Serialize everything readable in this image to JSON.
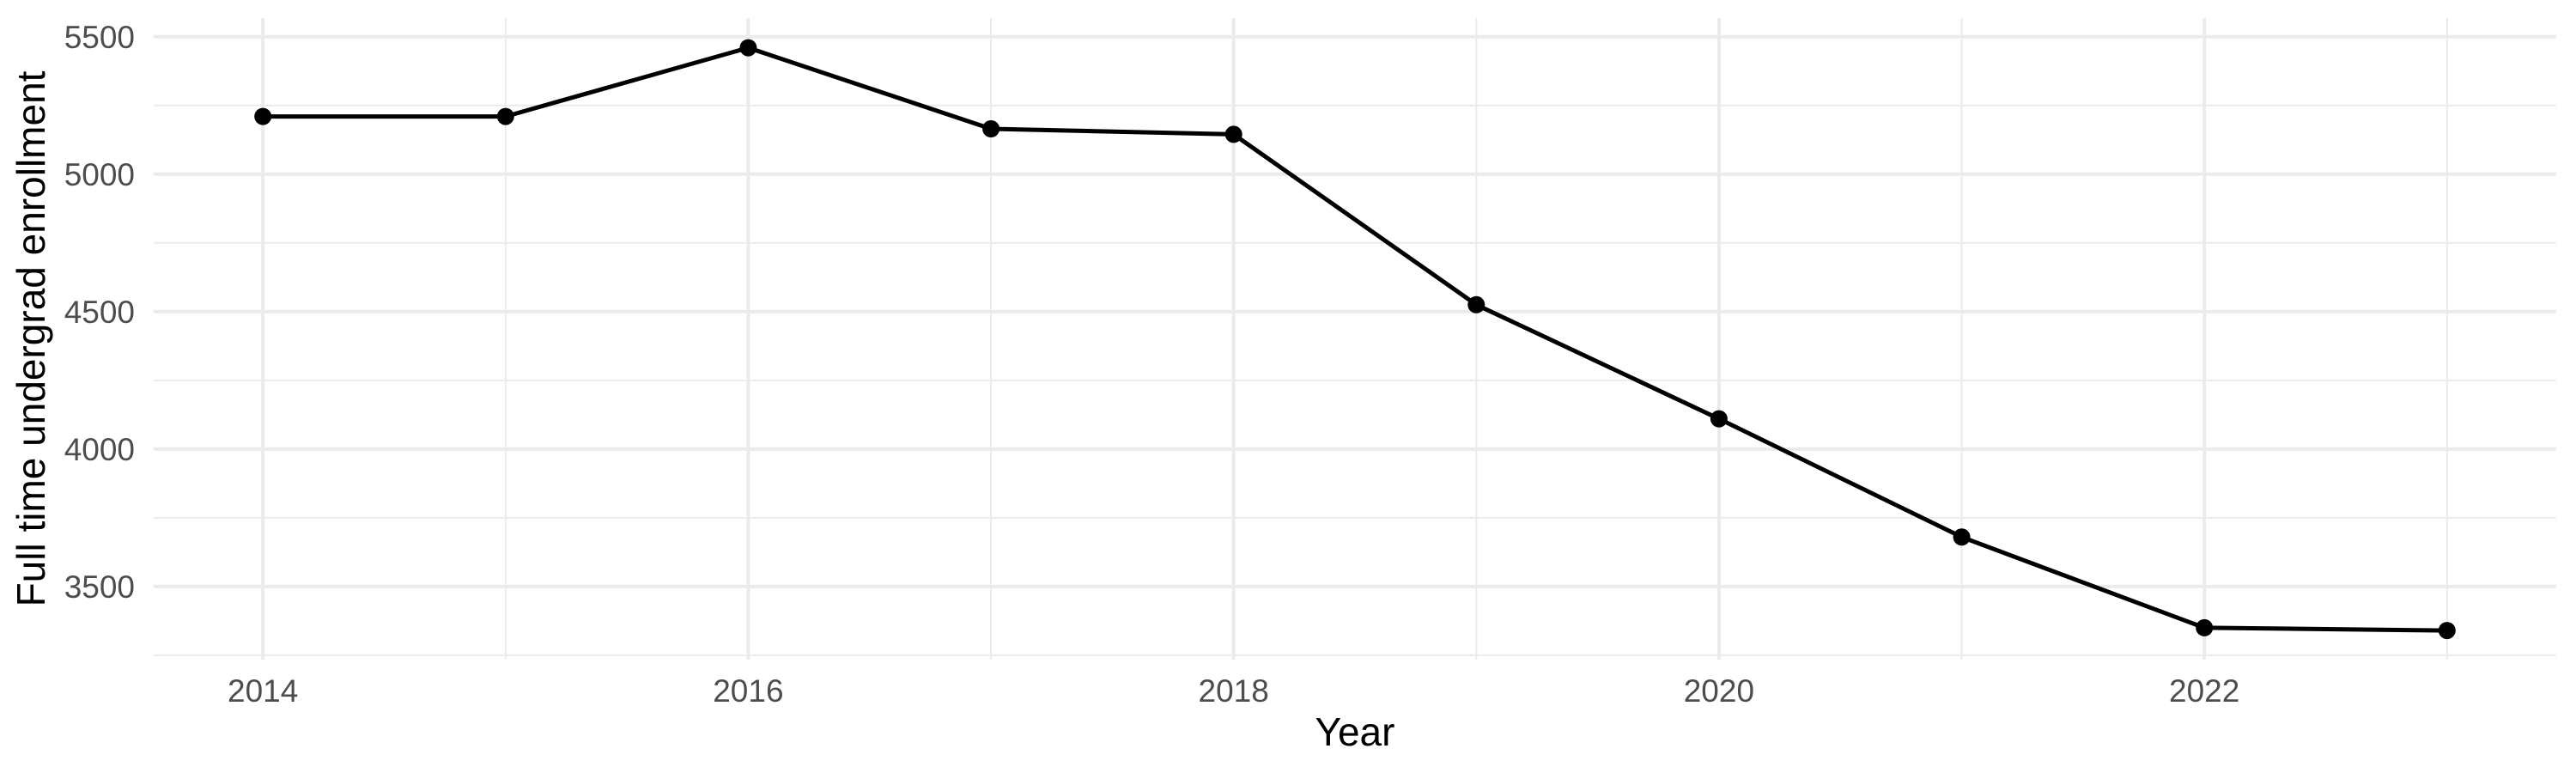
{
  "chart_data": {
    "type": "line",
    "title": "",
    "xlabel": "Year",
    "ylabel": "Full time undergrad enrollment",
    "x": [
      2014,
      2015,
      2016,
      2017,
      2018,
      2019,
      2020,
      2021,
      2022,
      2023
    ],
    "series": [
      {
        "name": "Full time undergrad enrollment",
        "values": [
          5210,
          5210,
          5460,
          5165,
          5145,
          4525,
          4110,
          3680,
          3350,
          3340
        ]
      }
    ],
    "xlim": [
      2013.55,
      2023.45
    ],
    "ylim": [
      3234,
      5568
    ],
    "x_ticks_major": [
      2014,
      2016,
      2018,
      2020,
      2022
    ],
    "x_ticks_minor": [
      2015,
      2017,
      2019,
      2021,
      2023
    ],
    "y_ticks_major": [
      5500,
      5000,
      4500,
      4000,
      3500
    ],
    "y_ticks_minor": [
      5250,
      4750,
      4250,
      3750,
      3250
    ],
    "grid": "major+minor",
    "legend": "none",
    "style": {
      "background_color": "#FFFFFF",
      "line_color": "#000000",
      "point_color": "#000000",
      "grid_color": "#EBEBEB",
      "tick_label_color": "#4D4D4D",
      "axis_title_color": "#000000"
    }
  }
}
